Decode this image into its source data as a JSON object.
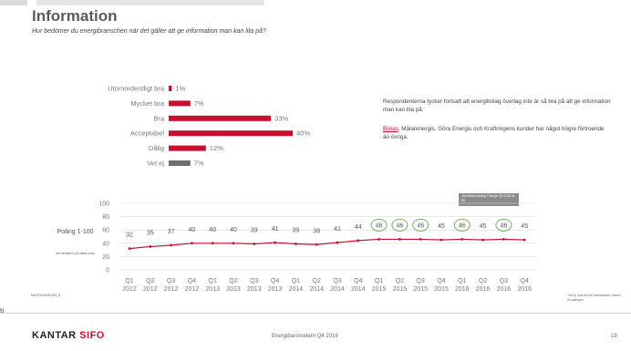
{
  "slide": {
    "title": "Information",
    "subtitle": "Hur bedömer du energibranschen när det gäller att ge information man kan lita på?",
    "comment_para1": "Respondenterna tycker fortsatt att energibolag överlag inte är så bra på att ge information man kan lita på.",
    "comment_para2_highlight": "Bixias",
    "comment_para2_rest": ", Mälarenergis, Göra Energis och Kraftringens kunder har något högre förtroende än övriga.",
    "callout": "Jämförbar poäng i Norge Q3 2016 är 56",
    "ylabel": "Poäng 1-100",
    "ynote": "(se definition på nästa sida)",
    "footnote_left": "MATRIX/ANSVAR_8",
    "footnote_right": "\"Vet ej\" svar är inte medräknade i basen för poängen",
    "brand_kantar": "KANTAR",
    "brand_sifo": "SIFO",
    "footer_center": "Energibarometern Q4 2016",
    "page_number": "19",
    "side_tab": "ti"
  },
  "colors": {
    "accent": "#c8102e",
    "bar_neutral": "#6f6f6f",
    "circle": "#6aa84f",
    "grid": "#d9d9d9"
  },
  "chart_data": [
    {
      "type": "bar",
      "orientation": "horizontal",
      "categories": [
        "Utomordentligt bra",
        "Mycket bra",
        "Bra",
        "Acceptabel",
        "Dålig",
        "Vet ej"
      ],
      "values": [
        1,
        7,
        33,
        40,
        12,
        7
      ],
      "value_labels": [
        "1%",
        "7%",
        "33%",
        "40%",
        "12%",
        "7%"
      ],
      "highlight_category": "Vet ej"
    },
    {
      "type": "line",
      "ylabel": "Poäng 1-100",
      "ylim": [
        0,
        100
      ],
      "yticks": [
        "0",
        "20",
        "40",
        "60",
        "80",
        "100"
      ],
      "grid": true,
      "quarters": [
        "Q1",
        "Q2",
        "Q3",
        "Q4",
        "Q1",
        "Q2",
        "Q3",
        "Q4",
        "Q1",
        "Q2",
        "Q3",
        "Q4",
        "Q1",
        "Q2",
        "Q3",
        "Q4",
        "Q1",
        "Q2",
        "Q3",
        "Q4"
      ],
      "years": [
        "2012",
        "2012",
        "2012",
        "2012",
        "2013",
        "2013",
        "2013",
        "2013",
        "2014",
        "2014",
        "2014",
        "2014",
        "2015",
        "2015",
        "2015",
        "2015",
        "2016",
        "2016",
        "2016",
        "2016"
      ],
      "values": [
        32,
        35,
        37,
        40,
        40,
        40,
        39,
        41,
        39,
        38,
        41,
        44,
        46,
        46,
        46,
        45,
        46,
        45,
        46,
        45
      ],
      "labels": [
        "32",
        "35",
        "37",
        "40",
        "40",
        "40",
        "39",
        "41",
        "39",
        "38",
        "41",
        "44",
        "46",
        "46",
        "46",
        "45",
        "46",
        "45",
        "46",
        "45"
      ],
      "circled": [
        12,
        13,
        14,
        16,
        18
      ]
    }
  ]
}
